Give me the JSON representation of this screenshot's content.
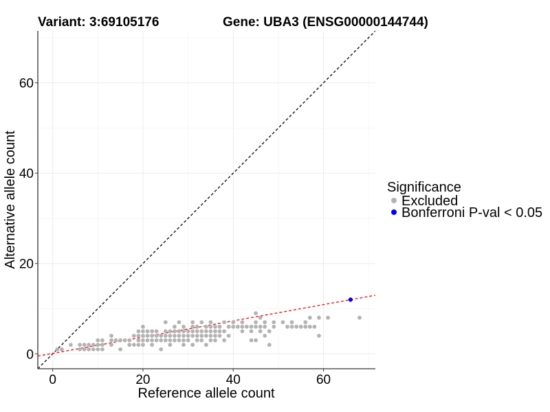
{
  "chart_data": {
    "type": "scatter",
    "title_left": "Variant: 3:69105176",
    "title_right": "Gene: UBA3 (ENSG00000144744)",
    "xlabel": "Reference allele count",
    "ylabel": "Alternative allele count",
    "xlim": [
      -3.3,
      71.5
    ],
    "ylim": [
      -3.3,
      71.5
    ],
    "x_ticks": [
      0,
      20,
      40,
      60
    ],
    "y_ticks": [
      0,
      20,
      40,
      60
    ],
    "x_tick_labels": [
      "0",
      "20",
      "40",
      "60"
    ],
    "y_tick_labels": [
      "0",
      "20",
      "40",
      "60"
    ],
    "grid": true,
    "reference_line": {
      "slope": 1,
      "intercept": 0,
      "color": "#000000",
      "style": "dashed"
    },
    "fit_line": {
      "slope": 0.18,
      "intercept": 0.1,
      "color": "#ff0000",
      "style": "dashed"
    },
    "legend": {
      "title": "Significance",
      "position": "right",
      "items": [
        {
          "label": "Excluded",
          "color": "#b3b3b3"
        },
        {
          "label": "Bonferroni P-val < 0.05",
          "color": "#0000ff"
        }
      ]
    },
    "series": [
      {
        "name": "Excluded",
        "color": "#b3b3b3",
        "points": [
          [
            1,
            1
          ],
          [
            2,
            1
          ],
          [
            4,
            2
          ],
          [
            6,
            1
          ],
          [
            6,
            2
          ],
          [
            7,
            1
          ],
          [
            7,
            2
          ],
          [
            8,
            1
          ],
          [
            8,
            2
          ],
          [
            9,
            1
          ],
          [
            9,
            2
          ],
          [
            10,
            1
          ],
          [
            10,
            2
          ],
          [
            10,
            3
          ],
          [
            11,
            1
          ],
          [
            11,
            2
          ],
          [
            11,
            3
          ],
          [
            13,
            2
          ],
          [
            13,
            3
          ],
          [
            13,
            4
          ],
          [
            14,
            3
          ],
          [
            15,
            1
          ],
          [
            15,
            3
          ],
          [
            16,
            3
          ],
          [
            17,
            2
          ],
          [
            17,
            3
          ],
          [
            18,
            2
          ],
          [
            18,
            4
          ],
          [
            19,
            2
          ],
          [
            19,
            3
          ],
          [
            19,
            4
          ],
          [
            19,
            5
          ],
          [
            20,
            2
          ],
          [
            20,
            3
          ],
          [
            20,
            4
          ],
          [
            20,
            5
          ],
          [
            20,
            6
          ],
          [
            21,
            3
          ],
          [
            21,
            4
          ],
          [
            21,
            5
          ],
          [
            22,
            2
          ],
          [
            22,
            3
          ],
          [
            22,
            4
          ],
          [
            22,
            5
          ],
          [
            23,
            3
          ],
          [
            23,
            4
          ],
          [
            23,
            5
          ],
          [
            24,
            1
          ],
          [
            24,
            3
          ],
          [
            24,
            4
          ],
          [
            25,
            3
          ],
          [
            25,
            4
          ],
          [
            25,
            5
          ],
          [
            25,
            7
          ],
          [
            26,
            2
          ],
          [
            26,
            3
          ],
          [
            26,
            4
          ],
          [
            26,
            5
          ],
          [
            27,
            3
          ],
          [
            27,
            4
          ],
          [
            27,
            5
          ],
          [
            27,
            6
          ],
          [
            28,
            3
          ],
          [
            28,
            4
          ],
          [
            28,
            5
          ],
          [
            28,
            7
          ],
          [
            29,
            2
          ],
          [
            29,
            3
          ],
          [
            29,
            4
          ],
          [
            29,
            5
          ],
          [
            29,
            6
          ],
          [
            30,
            3
          ],
          [
            30,
            4
          ],
          [
            30,
            5
          ],
          [
            31,
            2
          ],
          [
            31,
            4
          ],
          [
            31,
            5
          ],
          [
            31,
            6
          ],
          [
            31,
            7
          ],
          [
            32,
            3
          ],
          [
            32,
            4
          ],
          [
            32,
            5
          ],
          [
            32,
            6
          ],
          [
            33,
            3
          ],
          [
            33,
            4
          ],
          [
            33,
            5
          ],
          [
            33,
            7
          ],
          [
            34,
            2
          ],
          [
            34,
            4
          ],
          [
            34,
            5
          ],
          [
            34,
            6
          ],
          [
            35,
            3
          ],
          [
            35,
            4
          ],
          [
            35,
            5
          ],
          [
            35,
            6
          ],
          [
            35,
            7
          ],
          [
            36,
            3
          ],
          [
            36,
            4
          ],
          [
            36,
            5
          ],
          [
            36,
            6
          ],
          [
            37,
            4
          ],
          [
            37,
            5
          ],
          [
            37,
            6
          ],
          [
            38,
            3
          ],
          [
            38,
            5
          ],
          [
            38,
            7
          ],
          [
            39,
            4
          ],
          [
            39,
            6
          ],
          [
            40,
            6
          ],
          [
            40,
            7
          ],
          [
            41,
            6
          ],
          [
            42,
            5
          ],
          [
            42,
            6
          ],
          [
            42,
            7
          ],
          [
            43,
            6
          ],
          [
            44,
            3
          ],
          [
            44,
            5
          ],
          [
            44,
            6
          ],
          [
            45,
            3
          ],
          [
            45,
            6
          ],
          [
            45,
            7
          ],
          [
            45,
            9
          ],
          [
            46,
            5
          ],
          [
            46,
            6
          ],
          [
            46,
            8
          ],
          [
            47,
            4
          ],
          [
            47,
            6
          ],
          [
            47,
            7
          ],
          [
            48,
            2
          ],
          [
            48,
            5
          ],
          [
            49,
            6
          ],
          [
            49,
            7
          ],
          [
            51,
            7
          ],
          [
            52,
            6
          ],
          [
            53,
            6
          ],
          [
            53,
            7
          ],
          [
            54,
            6
          ],
          [
            55,
            6
          ],
          [
            56,
            6
          ],
          [
            56,
            7
          ],
          [
            57,
            6
          ],
          [
            57,
            8
          ],
          [
            58,
            6
          ],
          [
            59,
            4
          ],
          [
            59,
            8
          ],
          [
            61,
            8
          ],
          [
            68,
            8
          ]
        ]
      },
      {
        "name": "Bonferroni P-val < 0.05",
        "color": "#0000ff",
        "points": [
          [
            66,
            12
          ]
        ]
      }
    ]
  }
}
